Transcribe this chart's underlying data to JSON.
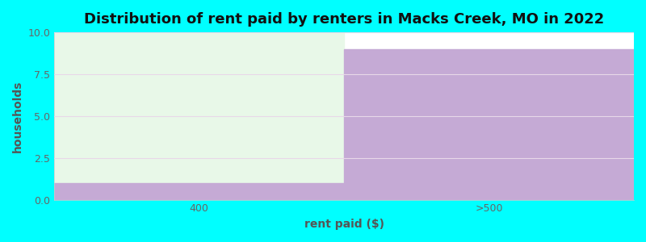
{
  "categories": [
    "400",
    ">500"
  ],
  "values": [
    1,
    9
  ],
  "bar_color": "#c5aad5",
  "bg_fill_color": "#e8f8e8",
  "ylim": [
    0,
    10
  ],
  "yticks": [
    0,
    2.5,
    5.0,
    7.5,
    10
  ],
  "title": "Distribution of rent paid by renters in Macks Creek, MO in 2022",
  "xlabel": "rent paid ($)",
  "ylabel": "households",
  "figure_bg_color": "#00ffff",
  "plot_bg_color": "#ffffff",
  "title_fontsize": 13,
  "axis_label_fontsize": 10,
  "tick_fontsize": 9,
  "grid_color": "#e8d8e8",
  "grid_linewidth": 0.8,
  "bar_edge_color": "none"
}
